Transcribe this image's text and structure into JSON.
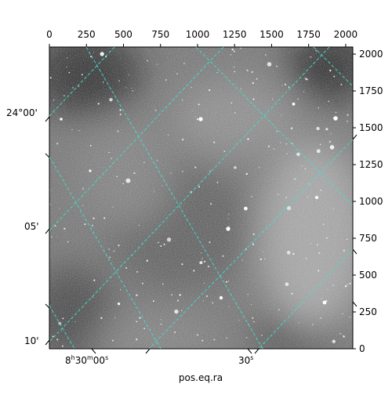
{
  "chart_data": {
    "type": "heatmap",
    "title": "",
    "xlabel": "pos.eq.ra",
    "pixel_x_axis": {
      "range": [
        0,
        2048
      ],
      "ticks": [
        0,
        250,
        500,
        750,
        1000,
        1250,
        1500,
        1750,
        2000
      ]
    },
    "pixel_y_axis": {
      "range": [
        0,
        2048
      ],
      "ticks": [
        0,
        250,
        500,
        750,
        1000,
        1250,
        1500,
        1750,
        2000
      ]
    },
    "ra_axis": {
      "ticks": [
        {
          "h": "8",
          "m": "30",
          "s": "00",
          "label": "8h30m00s"
        },
        {
          "s": "30",
          "label": "30s"
        }
      ]
    },
    "dec_axis": {
      "ticks": [
        {
          "label": "24°00'",
          "deg": "24°",
          "min": "00'"
        },
        {
          "label": "05'",
          "min": "05'"
        },
        {
          "label": "10'",
          "min": "10'"
        }
      ]
    },
    "grid": true,
    "grid_color": "#40e0d0",
    "colormap": "gray",
    "image_description": "noisy grayscale sky field with scattered point sources"
  }
}
